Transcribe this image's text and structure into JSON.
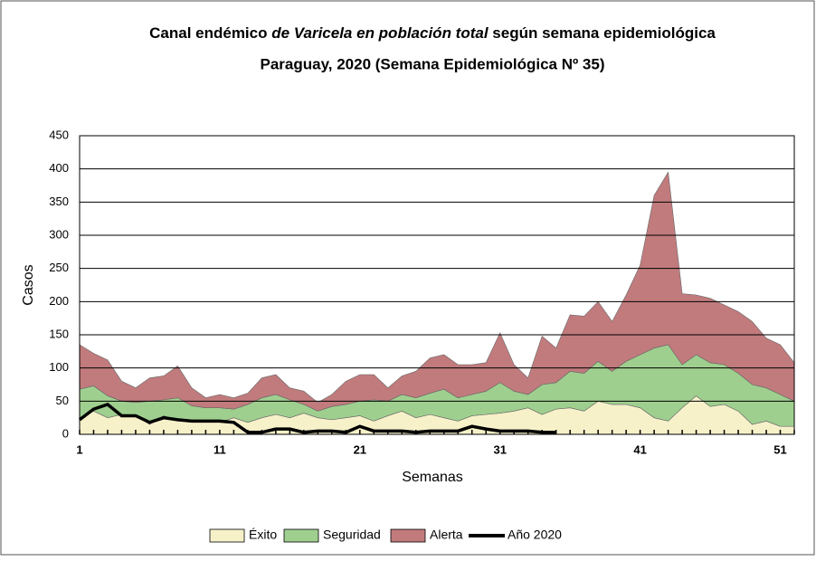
{
  "chart_data": {
    "type": "stacked-area",
    "title": [
      {
        "text": "Canal endémico ",
        "italic": false
      },
      {
        "text": "de Varicela en población total",
        "italic": true
      },
      {
        "text": " según semana epidemiológica",
        "italic": false
      }
    ],
    "subtitle": "Paraguay, 2020 (Semana Epidemiológica Nº 35)",
    "x_label": "Semanas",
    "y_label": "Casos",
    "x": [
      1,
      2,
      3,
      4,
      5,
      6,
      7,
      8,
      9,
      10,
      11,
      12,
      13,
      14,
      15,
      16,
      17,
      18,
      19,
      20,
      21,
      22,
      23,
      24,
      25,
      26,
      27,
      28,
      29,
      30,
      31,
      32,
      33,
      34,
      35,
      36,
      37,
      38,
      39,
      40,
      41,
      42,
      43,
      44,
      45,
      46,
      47,
      48,
      49,
      50,
      51,
      52
    ],
    "xlim": [
      1,
      52
    ],
    "xticks": [
      1,
      11,
      21,
      31,
      41,
      51
    ],
    "ylim": [
      0,
      450
    ],
    "yticks": [
      0,
      50,
      100,
      150,
      200,
      250,
      300,
      350,
      400,
      450
    ],
    "grid": true,
    "series": [
      {
        "name": "Éxito",
        "color": "#f6f1c9",
        "values": [
          25,
          35,
          25,
          30,
          28,
          15,
          28,
          20,
          22,
          20,
          18,
          25,
          18,
          25,
          30,
          25,
          32,
          25,
          22,
          25,
          28,
          20,
          28,
          35,
          25,
          30,
          25,
          20,
          28,
          30,
          32,
          35,
          40,
          30,
          38,
          40,
          35,
          50,
          45,
          45,
          40,
          25,
          20,
          40,
          58,
          42,
          45,
          35,
          15,
          20,
          12,
          12
        ]
      },
      {
        "name": "Seguridad",
        "color": "#9fcf8f",
        "values": [
          43,
          38,
          33,
          20,
          20,
          35,
          24,
          35,
          21,
          20,
          22,
          13,
          27,
          30,
          30,
          27,
          13,
          10,
          20,
          20,
          22,
          32,
          22,
          25,
          30,
          32,
          43,
          35,
          32,
          35,
          46,
          30,
          20,
          45,
          40,
          55,
          57,
          60,
          50,
          65,
          80,
          105,
          115,
          65,
          62,
          66,
          60,
          57,
          60,
          50,
          48,
          38
        ]
      },
      {
        "name": "Alerta",
        "color": "#c17b7d",
        "values": [
          67,
          49,
          54,
          30,
          22,
          35,
          36,
          48,
          27,
          15,
          20,
          17,
          17,
          30,
          30,
          18,
          20,
          13,
          18,
          35,
          40,
          38,
          20,
          28,
          40,
          53,
          52,
          50,
          45,
          43,
          75,
          40,
          25,
          73,
          52,
          85,
          86,
          90,
          75,
          100,
          135,
          230,
          260,
          107,
          90,
          97,
          90,
          93,
          95,
          75,
          75,
          58
        ]
      },
      {
        "name": "Año 2020",
        "color": "#000000",
        "line": true,
        "values": [
          22,
          38,
          45,
          28,
          28,
          18,
          25,
          22,
          20,
          20,
          20,
          18,
          3,
          3,
          8,
          8,
          3,
          5,
          5,
          3,
          12,
          5,
          5,
          5,
          3,
          5,
          5,
          5,
          12,
          8,
          5,
          5,
          5,
          3,
          3,
          null,
          null,
          null,
          null,
          null,
          null,
          null,
          null,
          null,
          null,
          null,
          null,
          null,
          null,
          null,
          null,
          null
        ]
      }
    ]
  }
}
